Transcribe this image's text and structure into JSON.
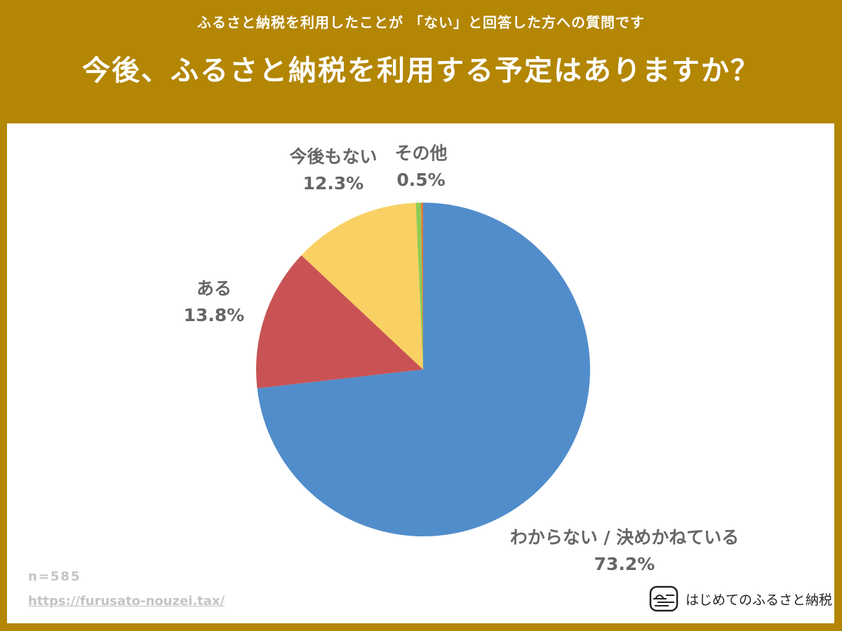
{
  "header": {
    "subtitle": "ふるさと納税を利用したことが 「ない」と回答した方への質問です",
    "title": "今後、ふるさと納税を利用する予定はありますか？"
  },
  "colors": {
    "frame": "#B38603",
    "panel": "#FFFFFF",
    "label_text": "#666666"
  },
  "chart_data": {
    "type": "pie",
    "title": "今後、ふるさと納税を利用する予定はありますか？",
    "subtitle": "ふるさと納税を利用したことが 「ない」と回答した方への質問です",
    "start_angle": "12 o'clock, clockwise",
    "categories": [
      "わからない / 決めかねている",
      "ある",
      "今後もない",
      "その他"
    ],
    "values": [
      73.2,
      13.8,
      12.3,
      0.5
    ],
    "unit": "%",
    "colors": [
      "#518DCB",
      "#C95354",
      "#F9D063",
      "#8DCB55"
    ],
    "labels": [
      {
        "name": "わからない / 決めかねている",
        "value": "73.2%"
      },
      {
        "name": "ある",
        "value": "13.8%"
      },
      {
        "name": "今後もない",
        "value": "12.3%"
      },
      {
        "name": "その他",
        "value": "0.5%"
      }
    ],
    "sample_size": "n=585",
    "legend": "none (direct labels)"
  },
  "labels": {
    "wakaranai": {
      "name": "わからない / 決めかねている",
      "pct": "73.2%"
    },
    "aru": {
      "name": "ある",
      "pct": "13.8%"
    },
    "kongomonai": {
      "name": "今後もない",
      "pct": "12.3%"
    },
    "sonota": {
      "name": "その他",
      "pct": "0.5%"
    }
  },
  "footer": {
    "n": "n=585",
    "url": "https://furusato-nouzei.tax/",
    "brand": "はじめてのふるさと納税",
    "brand_icon": "furusato-logo-icon"
  }
}
